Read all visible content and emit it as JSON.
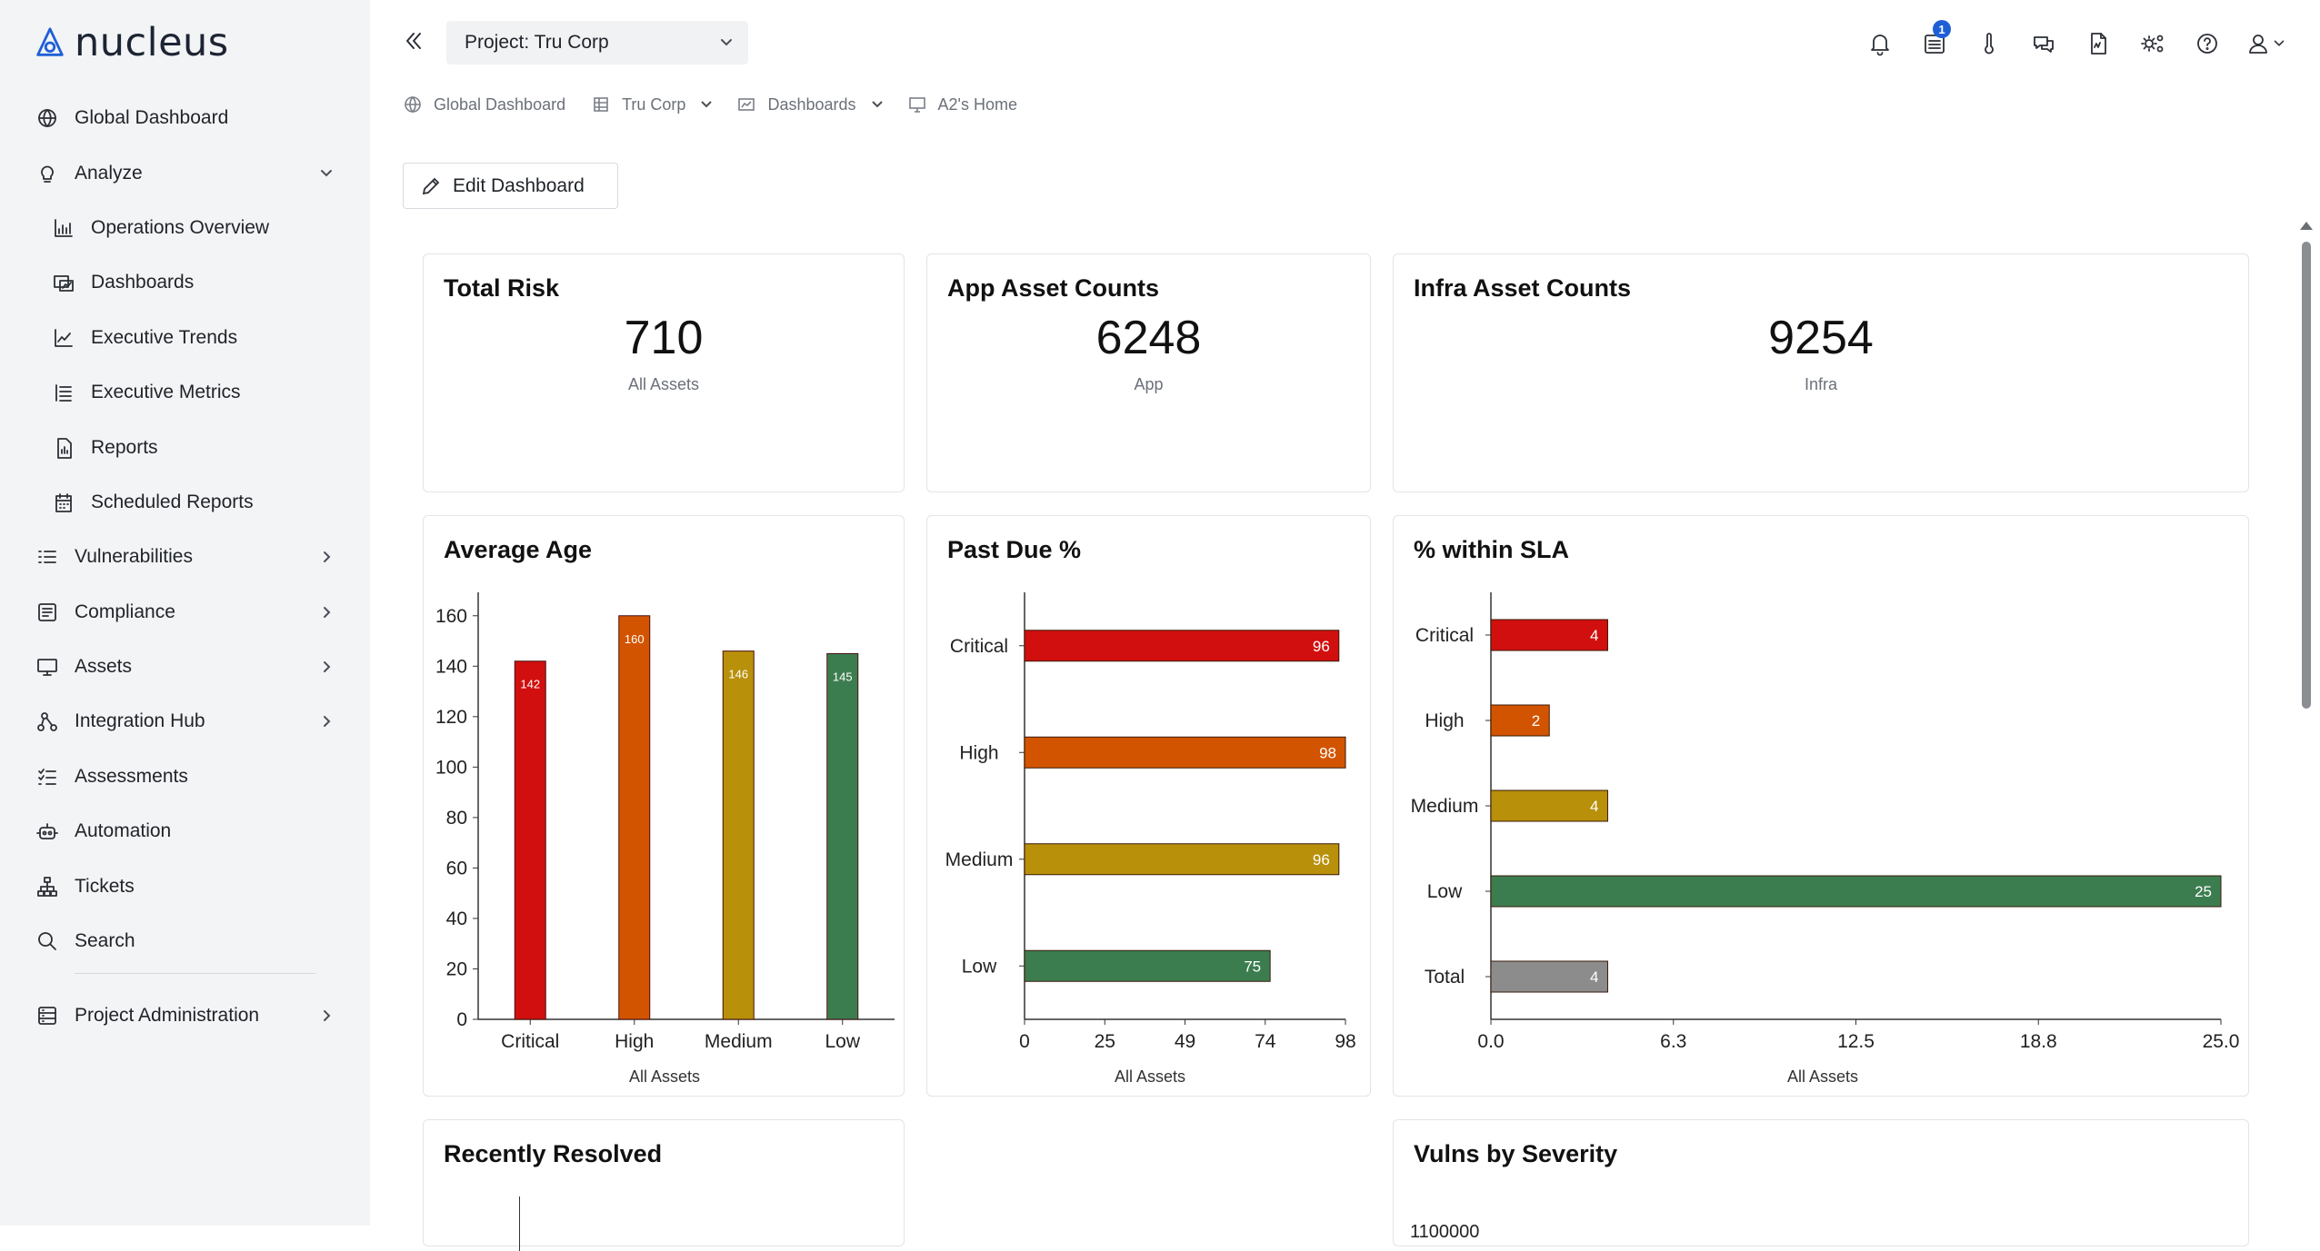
{
  "app": {
    "logo_text": "nucleus"
  },
  "sidebar": {
    "items": [
      {
        "label": "Global Dashboard",
        "icon": "globe-icon"
      },
      {
        "label": "Analyze",
        "icon": "lightbulb-icon",
        "expanded": true
      },
      {
        "label": "Operations Overview",
        "icon": "bar-chart-icon",
        "sub": true
      },
      {
        "label": "Dashboards",
        "icon": "dashboards-icon",
        "sub": true
      },
      {
        "label": "Executive Trends",
        "icon": "trend-icon",
        "sub": true
      },
      {
        "label": "Executive Metrics",
        "icon": "metrics-list-icon",
        "sub": true
      },
      {
        "label": "Reports",
        "icon": "report-icon",
        "sub": true
      },
      {
        "label": "Scheduled Reports",
        "icon": "calendar-icon",
        "sub": true
      },
      {
        "label": "Vulnerabilities",
        "icon": "list-icon"
      },
      {
        "label": "Compliance",
        "icon": "compliance-icon"
      },
      {
        "label": "Assets",
        "icon": "monitor-icon"
      },
      {
        "label": "Integration Hub",
        "icon": "integration-icon"
      },
      {
        "label": "Assessments",
        "icon": "checklist-icon"
      },
      {
        "label": "Automation",
        "icon": "robot-icon"
      },
      {
        "label": "Tickets",
        "icon": "hierarchy-icon"
      },
      {
        "label": "Search",
        "icon": "search-icon"
      },
      {
        "label": "Project Administration",
        "icon": "server-icon"
      }
    ]
  },
  "header": {
    "project_select": "Project: Tru Corp",
    "notifications_badge": "1",
    "icons": [
      "bell-icon",
      "tasks-icon",
      "thermometer-icon",
      "chat-icon",
      "document-icon",
      "settings-network-icon",
      "help-icon",
      "user-icon"
    ]
  },
  "breadcrumb": {
    "items": [
      "Global Dashboard",
      "Tru Corp",
      "Dashboards",
      "A2's Home"
    ]
  },
  "toolbar": {
    "edit_label": "Edit Dashboard"
  },
  "kpis": [
    {
      "title": "Total Risk",
      "value": "710",
      "sub": "All Assets"
    },
    {
      "title": "App Asset Counts",
      "value": "6248",
      "sub": "App"
    },
    {
      "title": "Infra Asset Counts",
      "value": "9254",
      "sub": "Infra"
    }
  ],
  "colors": {
    "critical": "#d10f0f",
    "high": "#d35400",
    "medium": "#b8900a",
    "low": "#3c7d50",
    "total": "#8c8c8c"
  },
  "chart_data": [
    {
      "title": "Average Age",
      "type": "bar",
      "categories": [
        "Critical",
        "High",
        "Medium",
        "Low"
      ],
      "values": [
        142,
        160,
        146,
        145
      ],
      "xlabel": "All Assets",
      "ylim": [
        0,
        170
      ],
      "yticks": [
        0,
        20,
        40,
        60,
        80,
        100,
        120,
        140,
        160
      ]
    },
    {
      "title": "Past Due %",
      "type": "bar",
      "orientation": "horizontal",
      "categories": [
        "Critical",
        "High",
        "Medium",
        "Low"
      ],
      "values": [
        96,
        98,
        96,
        75
      ],
      "xlabel": "All Assets",
      "xticks": [
        "0",
        "25",
        "49",
        "74",
        "98"
      ],
      "xlim": [
        0,
        98
      ]
    },
    {
      "title": "% within SLA",
      "type": "bar",
      "orientation": "horizontal",
      "categories": [
        "Critical",
        "High",
        "Medium",
        "Low",
        "Total"
      ],
      "values": [
        4,
        2,
        4,
        25,
        4
      ],
      "xlabel": "All Assets",
      "xticks": [
        "0.0",
        "6.3",
        "12.5",
        "18.8",
        "25.0"
      ],
      "xlim": [
        0,
        25
      ]
    }
  ],
  "bottom_cards": [
    {
      "title": "Recently Resolved"
    },
    {
      "title": "Vulns by Severity",
      "partial_tick": "1100000"
    }
  ]
}
